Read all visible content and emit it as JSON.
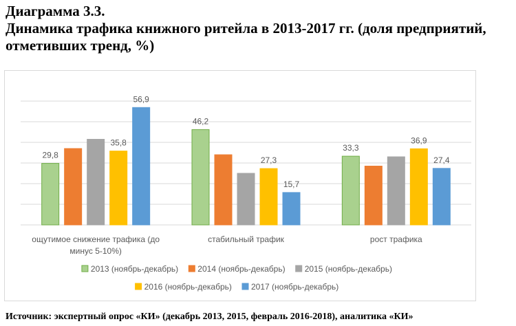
{
  "header": {
    "line1": "Диаграмма 3.3.",
    "line2": "Динамика трафика книжного ритейла в 2013-2017 гг. (доля предприятий,",
    "line3": "отметивших тренд, %)"
  },
  "source": "Источник: экспертный опрос «КИ» (декабрь 2013, 2015, февраль 2016-2018), аналитика «КИ»",
  "chart_data": {
    "type": "bar",
    "title": "Динамика трафика книжного ритейла в 2013-2017 гг. (доля предприятий, отметивших тренд, %)",
    "categories": [
      [
        "ощутимое снижение трафика (до",
        "минус 5-10%)"
      ],
      [
        "стабильный трафик"
      ],
      [
        "рост трафика"
      ]
    ],
    "series": [
      {
        "name": "2013 (ноябрь-декабрь)",
        "color": "#a9d18e",
        "stroke": "#70ad47",
        "values": [
          29.8,
          46.2,
          33.3
        ],
        "labels": [
          "29,8",
          "46,2",
          "33,3"
        ]
      },
      {
        "name": "2014 (ноябрь-декабрь)",
        "color": "#ed7d31",
        "stroke": "#ed7d31",
        "values": [
          37.0,
          34.0,
          28.5
        ],
        "labels": [
          "",
          "",
          ""
        ]
      },
      {
        "name": "2015 (ноябрь-декабрь)",
        "color": "#a5a5a5",
        "stroke": "#a5a5a5",
        "values": [
          41.5,
          25.0,
          33.0
        ],
        "labels": [
          "",
          "",
          ""
        ]
      },
      {
        "name": "2016 (ноябрь-декабрь)",
        "color": "#ffc000",
        "stroke": "#ffc000",
        "values": [
          35.8,
          27.3,
          36.9
        ],
        "labels": [
          "35,8",
          "27,3",
          "36,9"
        ]
      },
      {
        "name": "2017 (ноябрь-декабрь)",
        "color": "#5b9bd5",
        "stroke": "#5b9bd5",
        "values": [
          56.9,
          15.7,
          27.4
        ],
        "labels": [
          "56,9",
          "15,7",
          "27,4"
        ]
      }
    ],
    "ylim": [
      0,
      60
    ],
    "gridlines": [
      10,
      20,
      30,
      40,
      50,
      60
    ],
    "grid": true,
    "legend_position": "bottom"
  }
}
